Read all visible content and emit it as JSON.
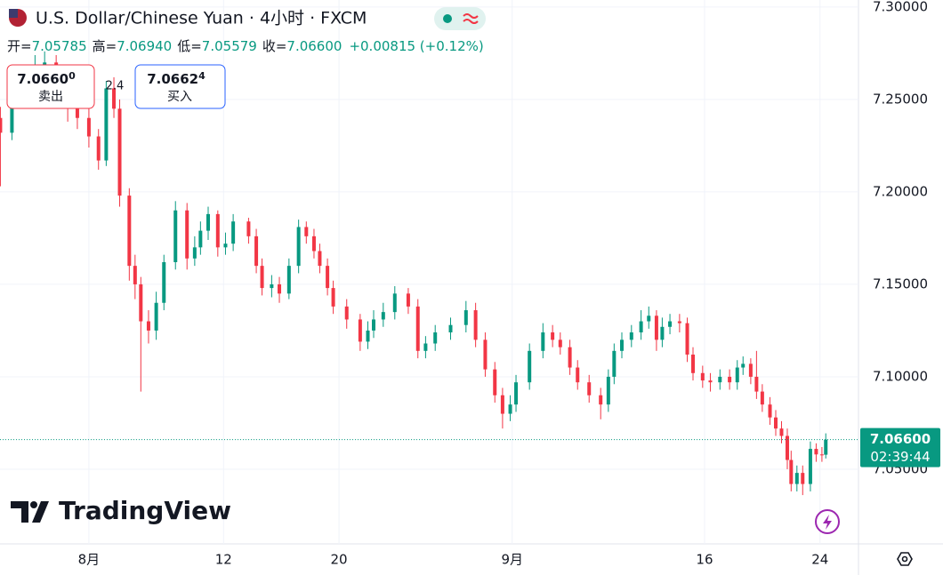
{
  "header": {
    "title": "U.S. Dollar/Chinese Yuan · 4小时 · FXCM",
    "open_label": "开=",
    "open": "7.05785",
    "high_label": "高=",
    "high": "7.06940",
    "low_label": "低=",
    "low": "7.05579",
    "close_label": "收=",
    "close": "7.06600",
    "change": "+0.00815 (+0.12%)"
  },
  "trade": {
    "sell_price": "7.0660",
    "sell_price_small": "0",
    "sell_label": "卖出",
    "spread": "2.4",
    "buy_price": "7.0662",
    "buy_price_small": "4",
    "buy_label": "买入"
  },
  "brand": "TradingView",
  "chart_data": {
    "type": "candlestick",
    "up_color": "#089981",
    "down_color": "#f23645",
    "grid": true,
    "x": [
      -4.6,
      -4.0,
      -3.4,
      -2.8,
      -2.3,
      -1.7,
      -1.1,
      -0.6,
      0.0,
      0.5,
      0.9,
      1.3,
      1.6,
      2.1,
      2.4,
      2.7,
      3.1,
      3.5,
      3.9,
      4.5,
      5.1,
      5.5,
      5.8,
      6.2,
      6.7,
      7.1,
      7.5,
      8.3,
      8.7,
      9.0,
      9.5,
      9.9,
      10.4,
      10.9,
      11.3,
      11.7,
      12.0,
      12.4,
      12.7,
      13.4,
      14.1,
      14.5,
      14.8,
      15.3,
      15.9,
      16.6,
      17.1,
      17.5,
      18.0,
      18.8,
      19.6,
      20.1,
      20.6,
      21.1,
      21.5,
      21.9,
      22.2,
      22.9,
      23.6,
      24.1,
      24.5,
      25.0,
      25.4,
      26.0,
      26.6,
      27.0,
      27.3,
      27.7,
      28.2,
      28.7,
      29.1,
      29.5,
      29.8,
      30.2,
      30.7,
      31.1,
      31.4,
      31.9,
      32.3,
      32.8,
      33.3,
      33.7,
      34.0,
      34.4,
      34.7,
      35.0,
      35.4,
      35.7,
      36.0,
      36.3,
      36.5,
      36.8,
      37.1,
      37.5,
      37.8,
      38.1,
      38.3
    ],
    "open": [
      7.24,
      7.232,
      7.25,
      7.262,
      7.268,
      7.27,
      7.258,
      7.245,
      7.24,
      7.23,
      7.217,
      7.256,
      7.245,
      7.198,
      7.16,
      7.15,
      7.13,
      7.125,
      7.14,
      7.162,
      7.19,
      7.164,
      7.17,
      7.179,
      7.188,
      7.17,
      7.172,
      7.184,
      7.176,
      7.16,
      7.148,
      7.15,
      7.145,
      7.16,
      7.181,
      7.176,
      7.168,
      7.16,
      7.148,
      7.138,
      7.131,
      7.119,
      7.125,
      7.131,
      7.135,
      7.145,
      7.138,
      7.114,
      7.118,
      7.124,
      7.128,
      7.136,
      7.12,
      7.104,
      7.09,
      7.08,
      7.085,
      7.097,
      7.114,
      7.124,
      7.12,
      7.116,
      7.105,
      7.097,
      7.09,
      7.085,
      7.1,
      7.114,
      7.12,
      7.124,
      7.13,
      7.133,
      7.12,
      7.127,
      7.13,
      7.129,
      7.112,
      7.102,
      7.098,
      7.097,
      7.1,
      7.097,
      7.105,
      7.107,
      7.1,
      7.092,
      7.085,
      7.078,
      7.072,
      7.068,
      7.055,
      7.042,
      7.048,
      7.042,
      7.061,
      7.058,
      7.05785
    ],
    "high": [
      7.246,
      7.254,
      7.266,
      7.274,
      7.276,
      7.274,
      7.262,
      7.25,
      7.246,
      7.234,
      7.26,
      7.262,
      7.25,
      7.202,
      7.166,
      7.154,
      7.136,
      7.146,
      7.166,
      7.195,
      7.194,
      7.176,
      7.184,
      7.192,
      7.19,
      7.178,
      7.188,
      7.186,
      7.18,
      7.164,
      7.155,
      7.154,
      7.164,
      7.185,
      7.184,
      7.18,
      7.172,
      7.164,
      7.152,
      7.142,
      7.134,
      7.13,
      7.136,
      7.14,
      7.149,
      7.148,
      7.142,
      7.122,
      7.128,
      7.132,
      7.141,
      7.14,
      7.124,
      7.108,
      7.094,
      7.09,
      7.101,
      7.118,
      7.129,
      7.128,
      7.124,
      7.12,
      7.109,
      7.101,
      7.094,
      7.104,
      7.118,
      7.124,
      7.128,
      7.136,
      7.138,
      7.136,
      7.132,
      7.134,
      7.134,
      7.132,
      7.116,
      7.106,
      7.102,
      7.104,
      7.104,
      7.109,
      7.111,
      7.11,
      7.114,
      7.096,
      7.089,
      7.082,
      7.076,
      7.072,
      7.06,
      7.052,
      7.052,
      7.065,
      7.064,
      7.062,
      7.0694
    ],
    "low": [
      7.203,
      7.228,
      7.246,
      7.258,
      7.262,
      7.254,
      7.238,
      7.234,
      7.224,
      7.212,
      7.214,
      7.24,
      7.192,
      7.152,
      7.142,
      7.092,
      7.118,
      7.12,
      7.136,
      7.158,
      7.158,
      7.16,
      7.166,
      7.174,
      7.165,
      7.166,
      7.168,
      7.172,
      7.156,
      7.144,
      7.143,
      7.14,
      7.142,
      7.156,
      7.172,
      7.164,
      7.156,
      7.144,
      7.134,
      7.126,
      7.114,
      7.115,
      7.121,
      7.127,
      7.131,
      7.134,
      7.11,
      7.11,
      7.114,
      7.12,
      7.124,
      7.116,
      7.1,
      7.086,
      7.072,
      7.076,
      7.081,
      7.093,
      7.11,
      7.116,
      7.112,
      7.101,
      7.093,
      7.086,
      7.077,
      7.081,
      7.096,
      7.11,
      7.116,
      7.12,
      7.126,
      7.114,
      7.116,
      7.123,
      7.124,
      7.108,
      7.098,
      7.094,
      7.092,
      7.093,
      7.093,
      7.093,
      7.101,
      7.096,
      7.088,
      7.081,
      7.074,
      7.068,
      7.064,
      7.05,
      7.038,
      7.038,
      7.036,
      7.038,
      7.054,
      7.054,
      7.05579
    ],
    "close": [
      7.232,
      7.25,
      7.262,
      7.268,
      7.27,
      7.258,
      7.245,
      7.24,
      7.23,
      7.217,
      7.256,
      7.245,
      7.198,
      7.16,
      7.15,
      7.13,
      7.125,
      7.14,
      7.162,
      7.19,
      7.164,
      7.17,
      7.179,
      7.188,
      7.17,
      7.172,
      7.184,
      7.176,
      7.16,
      7.148,
      7.15,
      7.145,
      7.16,
      7.181,
      7.176,
      7.168,
      7.16,
      7.148,
      7.138,
      7.131,
      7.119,
      7.125,
      7.131,
      7.135,
      7.145,
      7.138,
      7.114,
      7.118,
      7.124,
      7.128,
      7.136,
      7.12,
      7.104,
      7.09,
      7.08,
      7.085,
      7.097,
      7.114,
      7.124,
      7.12,
      7.116,
      7.105,
      7.097,
      7.09,
      7.085,
      7.1,
      7.114,
      7.12,
      7.124,
      7.13,
      7.133,
      7.12,
      7.127,
      7.13,
      7.129,
      7.112,
      7.102,
      7.098,
      7.097,
      7.1,
      7.097,
      7.105,
      7.107,
      7.1,
      7.092,
      7.085,
      7.078,
      7.072,
      7.068,
      7.055,
      7.042,
      7.048,
      7.042,
      7.061,
      7.058,
      7.05785,
      7.066
    ],
    "xlim": [
      -4.62,
      40.0
    ],
    "xticks": [
      {
        "value": 0,
        "label": "8月"
      },
      {
        "value": 7,
        "label": "12"
      },
      {
        "value": 13,
        "label": "20"
      },
      {
        "value": 22,
        "label": "9月"
      },
      {
        "value": 32,
        "label": "16"
      },
      {
        "value": 38,
        "label": "24"
      }
    ],
    "ylim": [
      7.0096,
      7.3038
    ],
    "yticks": [
      {
        "value": 7.05,
        "label": "7.05000"
      },
      {
        "value": 7.1,
        "label": "7.10000"
      },
      {
        "value": 7.15,
        "label": "7.15000"
      },
      {
        "value": 7.2,
        "label": "7.20000"
      },
      {
        "value": 7.25,
        "label": "7.25000"
      },
      {
        "value": 7.3,
        "label": "7.30000"
      }
    ],
    "last_price": {
      "value": 7.066,
      "label": "7.06600"
    },
    "countdown": "02:39:44"
  }
}
